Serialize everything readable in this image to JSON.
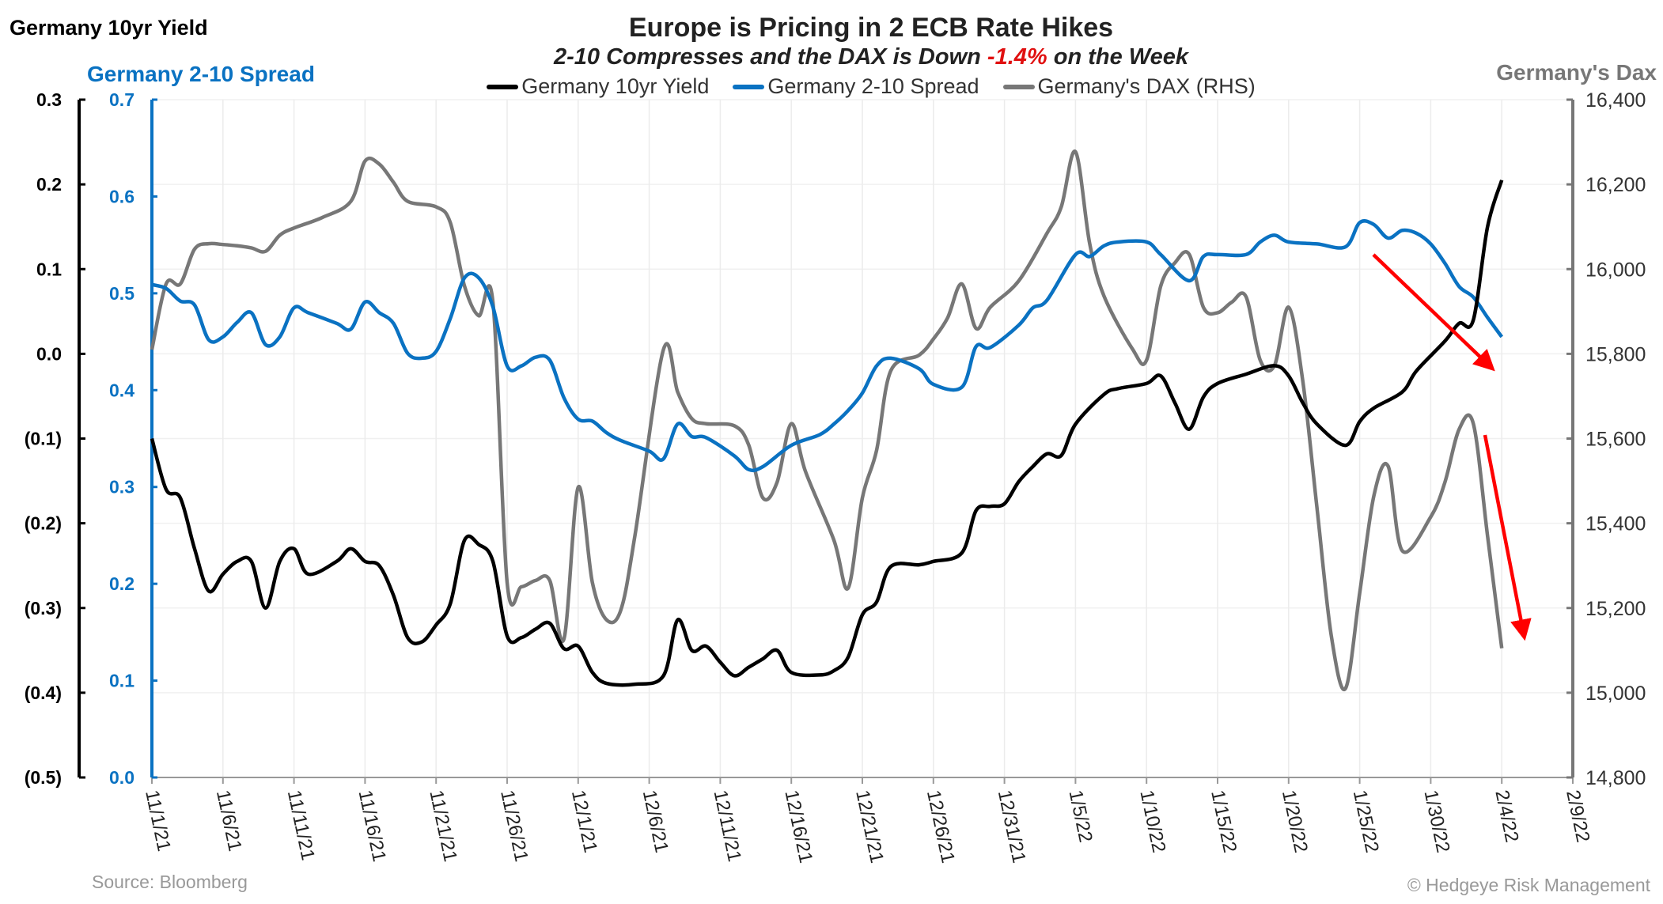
{
  "header": {
    "title": "Europe is Pricing in 2 ECB Rate Hikes",
    "subtitle_parts": [
      "2-10 Compresses and the DAX is Down ",
      "-1.4%",
      " on the Week"
    ]
  },
  "footer": {
    "source": "Source: Bloomberg",
    "copyright": "© Hedgeye Risk Management"
  },
  "colors": {
    "yield": "#000000",
    "spread": "#0a72c2",
    "dax": "#777777",
    "highlight": "#e01010",
    "arrows": "#ff0000"
  },
  "chart_data": {
    "type": "line",
    "title": "Europe is Pricing in 2 ECB Rate Hikes",
    "subtitle": "2-10 Compresses and the DAX is Down -1.4% on the Week",
    "grid": true,
    "legend_placement": "top-center",
    "x_axis": {
      "range": [
        "11/1/21",
        "2/9/22"
      ],
      "tick_labels": [
        "11/1/21",
        "11/6/21",
        "11/11/21",
        "11/16/21",
        "11/21/21",
        "11/26/21",
        "12/1/21",
        "12/6/21",
        "12/11/21",
        "12/16/21",
        "12/21/21",
        "12/26/21",
        "12/31/21",
        "1/5/22",
        "1/10/22",
        "1/15/22",
        "1/20/22",
        "1/25/22",
        "1/30/22",
        "2/4/22",
        "2/9/22"
      ]
    },
    "y_axes": {
      "left": {
        "label": "Germany 10yr Yield",
        "range": [
          -0.5,
          0.3
        ],
        "tick_labels": [
          "0.3",
          "0.2",
          "0.1",
          "0.0",
          "(0.1)",
          "(0.2)",
          "(0.3)",
          "(0.4)",
          "(0.5)"
        ],
        "tick_values": [
          0.3,
          0.2,
          0.1,
          0.0,
          -0.1,
          -0.2,
          -0.3,
          -0.4,
          -0.5
        ]
      },
      "spread": {
        "label": "Germany 2-10 Spread",
        "range": [
          0.0,
          0.7
        ],
        "tick_labels": [
          "0.7",
          "0.6",
          "0.5",
          "0.4",
          "0.3",
          "0.2",
          "0.1",
          "0.0"
        ],
        "tick_values": [
          0.7,
          0.6,
          0.5,
          0.4,
          0.3,
          0.2,
          0.1,
          0.0
        ]
      },
      "right": {
        "label": "Germany's Dax",
        "range": [
          14800,
          16400
        ],
        "tick_labels": [
          "16,400",
          "16,200",
          "16,000",
          "15,800",
          "15,600",
          "15,400",
          "15,200",
          "15,000",
          "14,800"
        ],
        "tick_values": [
          16400,
          16200,
          16000,
          15800,
          15600,
          15400,
          15200,
          15000,
          14800
        ]
      }
    },
    "series": [
      {
        "name": "Germany 10yr Yield",
        "axis": "left",
        "color": "#000000",
        "points": [
          [
            "11/1/21",
            -0.1
          ],
          [
            "11/2/21",
            -0.16
          ],
          [
            "11/3/21",
            -0.17
          ],
          [
            "11/4/21",
            -0.23
          ],
          [
            "11/5/21",
            -0.28
          ],
          [
            "11/6/21",
            -0.26
          ],
          [
            "11/7/21",
            -0.245
          ],
          [
            "11/8/21",
            -0.245
          ],
          [
            "11/9/21",
            -0.3
          ],
          [
            "11/10/21",
            -0.245
          ],
          [
            "11/11/21",
            -0.23
          ],
          [
            "11/12/21",
            -0.26
          ],
          [
            "11/14/21",
            -0.245
          ],
          [
            "11/15/21",
            -0.23
          ],
          [
            "11/16/21",
            -0.245
          ],
          [
            "11/17/21",
            -0.25
          ],
          [
            "11/18/21",
            -0.285
          ],
          [
            "11/19/21",
            -0.335
          ],
          [
            "11/20/21",
            -0.34
          ],
          [
            "11/21/21",
            -0.32
          ],
          [
            "11/22/21",
            -0.295
          ],
          [
            "11/23/21",
            -0.22
          ],
          [
            "11/24/21",
            -0.225
          ],
          [
            "11/25/21",
            -0.245
          ],
          [
            "11/26/21",
            -0.333
          ],
          [
            "11/27/21",
            -0.335
          ],
          [
            "11/28/21",
            -0.325
          ],
          [
            "11/29/21",
            -0.318
          ],
          [
            "11/30/21",
            -0.348
          ],
          [
            "12/1/21",
            -0.345
          ],
          [
            "12/2/21",
            -0.376
          ],
          [
            "12/3/21",
            -0.389
          ],
          [
            "12/5/21",
            -0.39
          ],
          [
            "12/7/21",
            -0.38
          ],
          [
            "12/8/21",
            -0.314
          ],
          [
            "12/9/21",
            -0.35
          ],
          [
            "12/10/21",
            -0.345
          ],
          [
            "12/11/21",
            -0.364
          ],
          [
            "12/12/21",
            -0.38
          ],
          [
            "12/13/21",
            -0.37
          ],
          [
            "12/14/21",
            -0.36
          ],
          [
            "12/15/21",
            -0.35
          ],
          [
            "12/16/21",
            -0.376
          ],
          [
            "12/18/21",
            -0.379
          ],
          [
            "12/19/21",
            -0.374
          ],
          [
            "12/20/21",
            -0.358
          ],
          [
            "12/21/21",
            -0.308
          ],
          [
            "12/22/21",
            -0.293
          ],
          [
            "12/23/21",
            -0.251
          ],
          [
            "12/25/21",
            -0.249
          ],
          [
            "12/26/21",
            -0.245
          ],
          [
            "12/28/21",
            -0.235
          ],
          [
            "12/29/21",
            -0.185
          ],
          [
            "12/30/21",
            -0.18
          ],
          [
            "12/31/21",
            -0.177
          ],
          [
            "1/1/22",
            -0.151
          ],
          [
            "1/2/22",
            -0.133
          ],
          [
            "1/3/22",
            -0.118
          ],
          [
            "1/4/22",
            -0.12
          ],
          [
            "1/5/22",
            -0.083
          ],
          [
            "1/7/22",
            -0.048
          ],
          [
            "1/8/22",
            -0.041
          ],
          [
            "1/10/22",
            -0.035
          ],
          [
            "1/11/22",
            -0.026
          ],
          [
            "1/12/22",
            -0.058
          ],
          [
            "1/13/22",
            -0.089
          ],
          [
            "1/14/22",
            -0.051
          ],
          [
            "1/15/22",
            -0.035
          ],
          [
            "1/17/22",
            -0.024
          ],
          [
            "1/19/22",
            -0.014
          ],
          [
            "1/20/22",
            -0.026
          ],
          [
            "1/21/22",
            -0.058
          ],
          [
            "1/22/22",
            -0.083
          ],
          [
            "1/24/22",
            -0.108
          ],
          [
            "1/25/22",
            -0.08
          ],
          [
            "1/26/22",
            -0.064
          ],
          [
            "1/28/22",
            -0.045
          ],
          [
            "1/29/22",
            -0.02
          ],
          [
            "1/31/22",
            0.015
          ],
          [
            "2/1/22",
            0.036
          ],
          [
            "2/2/22",
            0.04
          ],
          [
            "2/3/22",
            0.15
          ],
          [
            "2/4/22",
            0.205
          ]
        ]
      },
      {
        "name": "Germany 2-10 Spread",
        "axis": "spread",
        "color": "#0a72c2",
        "points": [
          [
            "11/1/21",
            0.509
          ],
          [
            "11/2/21",
            0.505
          ],
          [
            "11/3/21",
            0.492
          ],
          [
            "11/4/21",
            0.488
          ],
          [
            "11/5/21",
            0.452
          ],
          [
            "11/6/21",
            0.455
          ],
          [
            "11/7/21",
            0.47
          ],
          [
            "11/8/21",
            0.48
          ],
          [
            "11/9/21",
            0.447
          ],
          [
            "11/10/21",
            0.455
          ],
          [
            "11/11/21",
            0.485
          ],
          [
            "11/12/21",
            0.48
          ],
          [
            "11/14/21",
            0.469
          ],
          [
            "11/15/21",
            0.463
          ],
          [
            "11/16/21",
            0.491
          ],
          [
            "11/17/21",
            0.48
          ],
          [
            "11/18/21",
            0.469
          ],
          [
            "11/19/21",
            0.438
          ],
          [
            "11/20/21",
            0.433
          ],
          [
            "11/21/21",
            0.44
          ],
          [
            "11/22/21",
            0.474
          ],
          [
            "11/23/21",
            0.516
          ],
          [
            "11/24/21",
            0.516
          ],
          [
            "11/25/21",
            0.486
          ],
          [
            "11/26/21",
            0.425
          ],
          [
            "11/27/21",
            0.425
          ],
          [
            "11/28/21",
            0.434
          ],
          [
            "11/29/21",
            0.431
          ],
          [
            "11/30/21",
            0.392
          ],
          [
            "12/1/21",
            0.37
          ],
          [
            "12/2/21",
            0.368
          ],
          [
            "12/3/21",
            0.356
          ],
          [
            "12/4/21",
            0.348
          ],
          [
            "12/6/21",
            0.337
          ],
          [
            "12/7/21",
            0.329
          ],
          [
            "12/8/21",
            0.365
          ],
          [
            "12/9/21",
            0.352
          ],
          [
            "12/10/21",
            0.351
          ],
          [
            "12/12/21",
            0.332
          ],
          [
            "12/13/21",
            0.318
          ],
          [
            "12/14/21",
            0.321
          ],
          [
            "12/16/21",
            0.343
          ],
          [
            "12/18/21",
            0.354
          ],
          [
            "12/19/21",
            0.365
          ],
          [
            "12/20/21",
            0.379
          ],
          [
            "12/21/21",
            0.397
          ],
          [
            "12/22/21",
            0.425
          ],
          [
            "12/23/21",
            0.433
          ],
          [
            "12/25/21",
            0.422
          ],
          [
            "12/26/21",
            0.406
          ],
          [
            "12/28/21",
            0.403
          ],
          [
            "12/29/21",
            0.445
          ],
          [
            "12/30/21",
            0.444
          ],
          [
            "1/1/22",
            0.467
          ],
          [
            "1/2/22",
            0.485
          ],
          [
            "1/3/22",
            0.493
          ],
          [
            "1/5/22",
            0.54
          ],
          [
            "1/6/22",
            0.538
          ],
          [
            "1/7/22",
            0.549
          ],
          [
            "1/8/22",
            0.553
          ],
          [
            "1/10/22",
            0.553
          ],
          [
            "1/11/22",
            0.54
          ],
          [
            "1/13/22",
            0.513
          ],
          [
            "1/14/22",
            0.538
          ],
          [
            "1/15/22",
            0.54
          ],
          [
            "1/17/22",
            0.54
          ],
          [
            "1/18/22",
            0.553
          ],
          [
            "1/19/22",
            0.56
          ],
          [
            "1/20/22",
            0.553
          ],
          [
            "1/22/22",
            0.551
          ],
          [
            "1/24/22",
            0.548
          ],
          [
            "1/25/22",
            0.573
          ],
          [
            "1/26/22",
            0.571
          ],
          [
            "1/27/22",
            0.557
          ],
          [
            "1/28/22",
            0.565
          ],
          [
            "1/29/22",
            0.562
          ],
          [
            "1/30/22",
            0.551
          ],
          [
            "1/31/22",
            0.531
          ],
          [
            "2/1/22",
            0.507
          ],
          [
            "2/2/22",
            0.496
          ],
          [
            "2/3/22",
            0.475
          ],
          [
            "2/4/22",
            0.455
          ]
        ]
      },
      {
        "name": "Germany's DAX (RHS)",
        "axis": "right",
        "color": "#777777",
        "points": [
          [
            "11/1/21",
            15810
          ],
          [
            "11/2/21",
            15965
          ],
          [
            "11/3/21",
            15965
          ],
          [
            "11/4/21",
            16047
          ],
          [
            "11/5/21",
            16060
          ],
          [
            "11/6/21",
            16058
          ],
          [
            "11/7/21",
            16055
          ],
          [
            "11/8/21",
            16050
          ],
          [
            "11/9/21",
            16042
          ],
          [
            "11/10/21",
            16080
          ],
          [
            "11/11/21",
            16097
          ],
          [
            "11/13/21",
            16122
          ],
          [
            "11/15/21",
            16160
          ],
          [
            "11/16/21",
            16255
          ],
          [
            "11/17/21",
            16248
          ],
          [
            "11/18/21",
            16205
          ],
          [
            "11/19/21",
            16160
          ],
          [
            "11/21/21",
            16147
          ],
          [
            "11/22/21",
            16110
          ],
          [
            "11/23/21",
            15960
          ],
          [
            "11/24/21",
            15890
          ],
          [
            "11/25/21",
            15922
          ],
          [
            "11/26/21",
            15260
          ],
          [
            "11/27/21",
            15250
          ],
          [
            "11/28/21",
            15265
          ],
          [
            "11/29/21",
            15265
          ],
          [
            "11/30/21",
            15127
          ],
          [
            "12/1/21",
            15485
          ],
          [
            "12/2/21",
            15260
          ],
          [
            "12/3/21",
            15172
          ],
          [
            "12/4/21",
            15195
          ],
          [
            "12/5/21",
            15372
          ],
          [
            "12/7/21",
            15810
          ],
          [
            "12/8/21",
            15710
          ],
          [
            "12/9/21",
            15647
          ],
          [
            "12/10/21",
            15635
          ],
          [
            "12/12/21",
            15630
          ],
          [
            "12/13/21",
            15585
          ],
          [
            "12/14/21",
            15460
          ],
          [
            "12/15/21",
            15497
          ],
          [
            "12/16/21",
            15635
          ],
          [
            "12/17/21",
            15522
          ],
          [
            "12/19/21",
            15360
          ],
          [
            "12/20/21",
            15247
          ],
          [
            "12/21/21",
            15460
          ],
          [
            "12/22/21",
            15572
          ],
          [
            "12/23/21",
            15760
          ],
          [
            "12/25/21",
            15797
          ],
          [
            "12/26/21",
            15835
          ],
          [
            "12/27/21",
            15885
          ],
          [
            "12/28/21",
            15965
          ],
          [
            "12/29/21",
            15860
          ],
          [
            "12/30/21",
            15910
          ],
          [
            "1/1/22",
            15972
          ],
          [
            "1/3/22",
            16085
          ],
          [
            "1/4/22",
            16147
          ],
          [
            "1/5/22",
            16277
          ],
          [
            "1/6/22",
            16060
          ],
          [
            "1/7/22",
            15937
          ],
          [
            "1/9/22",
            15812
          ],
          [
            "1/10/22",
            15785
          ],
          [
            "1/11/22",
            15960
          ],
          [
            "1/12/22",
            16015
          ],
          [
            "1/13/22",
            16035
          ],
          [
            "1/14/22",
            15910
          ],
          [
            "1/15/22",
            15897
          ],
          [
            "1/16/22",
            15922
          ],
          [
            "1/17/22",
            15935
          ],
          [
            "1/18/22",
            15785
          ],
          [
            "1/19/22",
            15772
          ],
          [
            "1/20/22",
            15910
          ],
          [
            "1/21/22",
            15735
          ],
          [
            "1/22/22",
            15435
          ],
          [
            "1/23/22",
            15135
          ],
          [
            "1/24/22",
            15010
          ],
          [
            "1/25/22",
            15235
          ],
          [
            "1/26/22",
            15465
          ],
          [
            "1/27/22",
            15535
          ],
          [
            "1/28/22",
            15335
          ],
          [
            "1/30/22",
            15415
          ],
          [
            "1/31/22",
            15497
          ],
          [
            "2/1/22",
            15622
          ],
          [
            "2/2/22",
            15635
          ],
          [
            "2/3/22",
            15370
          ],
          [
            "2/4/22",
            15105
          ]
        ]
      }
    ]
  }
}
